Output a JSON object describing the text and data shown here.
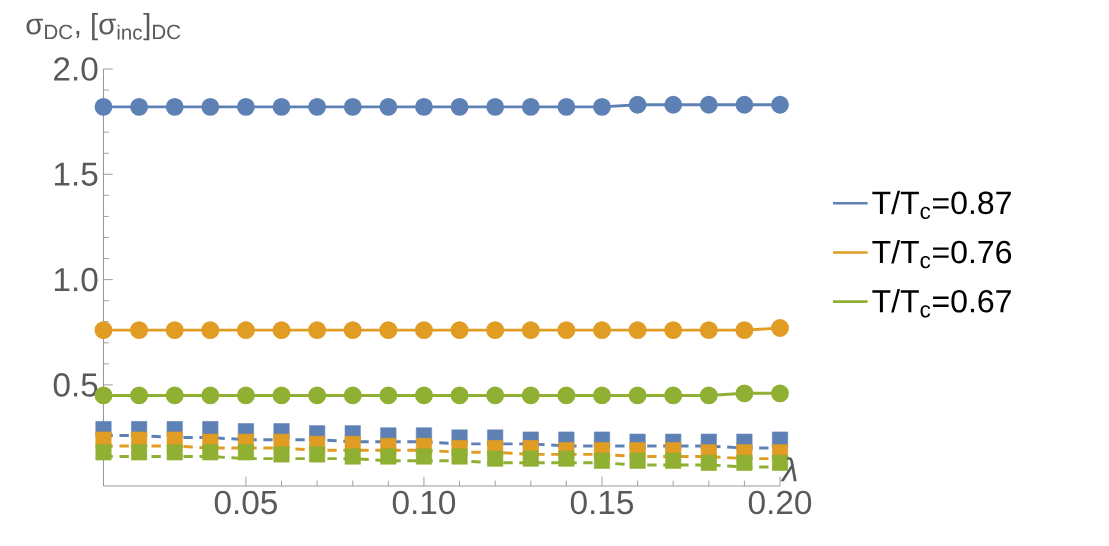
{
  "chart_data": {
    "type": "line",
    "xlabel": "λ",
    "ylabel": "σ$_{DC}$, [σ$_{inc}$]$_{DC}$",
    "x": [
      0.01,
      0.02,
      0.03,
      0.04,
      0.05,
      0.06,
      0.07,
      0.08,
      0.09,
      0.1,
      0.11,
      0.12,
      0.13,
      0.14,
      0.15,
      0.16,
      0.17,
      0.18,
      0.19,
      0.2
    ],
    "xlim": [
      0.01,
      0.2
    ],
    "ylim": [
      0.02,
      2.0
    ],
    "xticks": [
      0.05,
      {
        "value": 0.1,
        "label": "0.10"
      },
      0.15,
      {
        "value": 0.2,
        "label": "0.20"
      }
    ],
    "yticks": [
      0.5,
      {
        "value": 1.0,
        "label": "1.0"
      },
      1.5,
      {
        "value": 2.0,
        "label": "2.0"
      }
    ],
    "legend": "right",
    "grid": false,
    "series": [
      {
        "name": "T/T$_{c}$=0.87",
        "color": "#5e81b5",
        "marker": "circle",
        "line_style": "solid",
        "values": [
          1.82,
          1.82,
          1.82,
          1.82,
          1.82,
          1.82,
          1.82,
          1.82,
          1.82,
          1.82,
          1.82,
          1.82,
          1.82,
          1.82,
          1.82,
          1.83,
          1.83,
          1.83,
          1.83,
          1.83
        ]
      },
      {
        "name": "T/T$_{c}$=0.76",
        "color": "#e19c24",
        "marker": "circle",
        "line_style": "solid",
        "values": [
          0.76,
          0.76,
          0.76,
          0.76,
          0.76,
          0.76,
          0.76,
          0.76,
          0.76,
          0.76,
          0.76,
          0.76,
          0.76,
          0.76,
          0.76,
          0.76,
          0.76,
          0.76,
          0.76,
          0.77
        ]
      },
      {
        "name": "T/T$_{c}$=0.67",
        "color": "#8fb032",
        "marker": "circle",
        "line_style": "solid",
        "values": [
          0.45,
          0.45,
          0.45,
          0.45,
          0.45,
          0.45,
          0.45,
          0.45,
          0.45,
          0.45,
          0.45,
          0.45,
          0.45,
          0.45,
          0.45,
          0.45,
          0.45,
          0.45,
          0.46,
          0.46
        ]
      },
      {
        "type": "scatter",
        "color": "#5e81b5",
        "marker": "square",
        "values": [
          0.29,
          0.29,
          0.29,
          0.29,
          0.28,
          0.28,
          0.27,
          0.27,
          0.26,
          0.26,
          0.25,
          0.25,
          0.24,
          0.24,
          0.24,
          0.23,
          0.23,
          0.23,
          0.23,
          0.24
        ]
      },
      {
        "type": "scatter",
        "color": "#e19c24",
        "marker": "square",
        "values": [
          0.24,
          0.24,
          0.24,
          0.23,
          0.23,
          0.23,
          0.22,
          0.22,
          0.21,
          0.21,
          0.2,
          0.2,
          0.2,
          0.19,
          0.19,
          0.19,
          0.19,
          0.18,
          0.18,
          0.18
        ]
      },
      {
        "type": "scatter",
        "color": "#8fb032",
        "marker": "square",
        "values": [
          0.18,
          0.18,
          0.18,
          0.18,
          0.18,
          0.17,
          0.17,
          0.16,
          0.16,
          0.16,
          0.16,
          0.15,
          0.15,
          0.15,
          0.14,
          0.14,
          0.14,
          0.13,
          0.13,
          0.13
        ]
      },
      {
        "color": "#5e81b5",
        "marker": "none",
        "line_style": "dashed",
        "values": [
          0.26,
          0.26,
          0.25,
          0.25,
          0.24,
          0.24,
          0.24,
          0.23,
          0.23,
          0.23,
          0.22,
          0.22,
          0.22,
          0.21,
          0.21,
          0.21,
          0.21,
          0.21,
          0.2,
          0.2
        ]
      },
      {
        "color": "#e19c24",
        "marker": "none",
        "line_style": "dashed",
        "values": [
          0.21,
          0.21,
          0.21,
          0.2,
          0.2,
          0.2,
          0.19,
          0.19,
          0.19,
          0.19,
          0.18,
          0.18,
          0.17,
          0.17,
          0.17,
          0.16,
          0.16,
          0.16,
          0.15,
          0.15
        ]
      },
      {
        "color": "#8fb032",
        "marker": "none",
        "line_style": "dashed",
        "values": [
          0.16,
          0.16,
          0.16,
          0.16,
          0.15,
          0.15,
          0.15,
          0.15,
          0.14,
          0.14,
          0.14,
          0.13,
          0.13,
          0.13,
          0.13,
          0.12,
          0.12,
          0.12,
          0.11,
          0.11
        ]
      }
    ]
  }
}
